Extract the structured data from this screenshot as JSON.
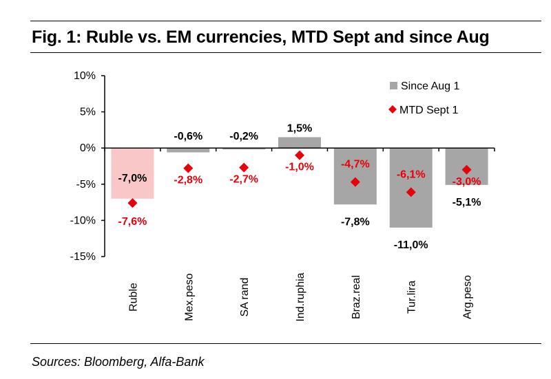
{
  "title": "Fig. 1: Ruble vs. EM currencies, MTD Sept and since Aug",
  "source": "Sources: Bloomberg, Alfa-Bank",
  "chart_data": {
    "type": "bar",
    "categories": [
      "Ruble",
      "Mex.peso",
      "SA rand",
      "Ind.ruphia",
      "Braz.real",
      "Tur.lira",
      "Arg.peso"
    ],
    "ylim": [
      -15,
      10
    ],
    "yticks": [
      10,
      5,
      0,
      -5,
      -10,
      -15
    ],
    "ytick_labels": [
      "10%",
      "5%",
      "0%",
      "-5%",
      "-10%",
      "-15%"
    ],
    "legend_position": "top-right",
    "grid": false,
    "series": [
      {
        "name": "Since Aug 1",
        "type": "bar",
        "values": [
          -7.0,
          -0.6,
          -0.2,
          1.5,
          -7.8,
          -11.0,
          -5.1
        ],
        "labels": [
          "-7,0%",
          "-0,6%",
          "-0,2%",
          "1,5%",
          "-7,8%",
          "-11,0%",
          "-5,1%"
        ],
        "color": "#a6a6a6",
        "highlight_color": "#f9c7c7"
      },
      {
        "name": "MTD Sept 1",
        "type": "scatter",
        "marker": "diamond",
        "values": [
          -7.6,
          -2.8,
          -2.7,
          -1.0,
          -4.7,
          -6.1,
          -3.0
        ],
        "labels": [
          "-7,6%",
          "-2,8%",
          "-2,7%",
          "-1,0%",
          "-4,7%",
          "-6,1%",
          "-3,0%"
        ],
        "color": "#e8000b"
      }
    ]
  }
}
